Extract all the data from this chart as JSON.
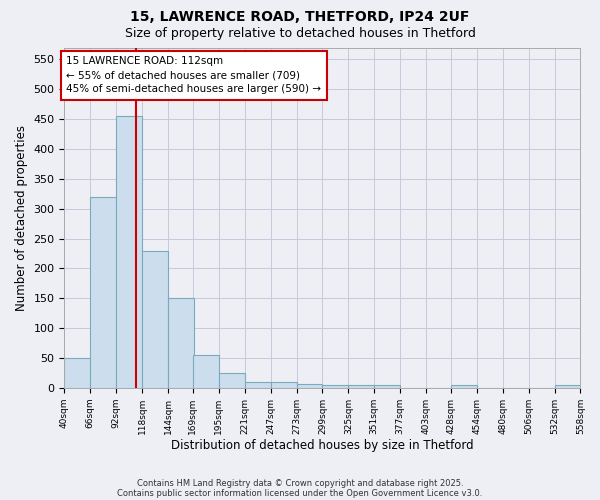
{
  "title1": "15, LAWRENCE ROAD, THETFORD, IP24 2UF",
  "title2": "Size of property relative to detached houses in Thetford",
  "xlabel": "Distribution of detached houses by size in Thetford",
  "ylabel": "Number of detached properties",
  "annotation_title": "15 LAWRENCE ROAD: 112sqm",
  "annotation_line1": "← 55% of detached houses are smaller (709)",
  "annotation_line2": "45% of semi-detached houses are larger (590) →",
  "red_line_x": 112,
  "bin_edges": [
    40,
    66,
    92,
    118,
    144,
    169,
    195,
    221,
    247,
    273,
    299,
    325,
    351,
    377,
    403,
    428,
    454,
    480,
    506,
    532,
    558
  ],
  "bar_heights": [
    50,
    320,
    455,
    230,
    150,
    55,
    25,
    10,
    10,
    7,
    5,
    4,
    5,
    0,
    0,
    4,
    0,
    0,
    0,
    5
  ],
  "bar_color": "#ccdded",
  "bar_edge_color": "#7aaabb",
  "red_line_color": "#cc0000",
  "grid_color": "#c8c8dc",
  "background_color": "#eeeef5",
  "ax_background_color": "#eeeef5",
  "annotation_box_color": "#ffffff",
  "annotation_box_edge": "#cc0000",
  "ylim": [
    0,
    570
  ],
  "yticks": [
    0,
    50,
    100,
    150,
    200,
    250,
    300,
    350,
    400,
    450,
    500,
    550
  ],
  "footer1": "Contains HM Land Registry data © Crown copyright and database right 2025.",
  "footer2": "Contains public sector information licensed under the Open Government Licence v3.0."
}
